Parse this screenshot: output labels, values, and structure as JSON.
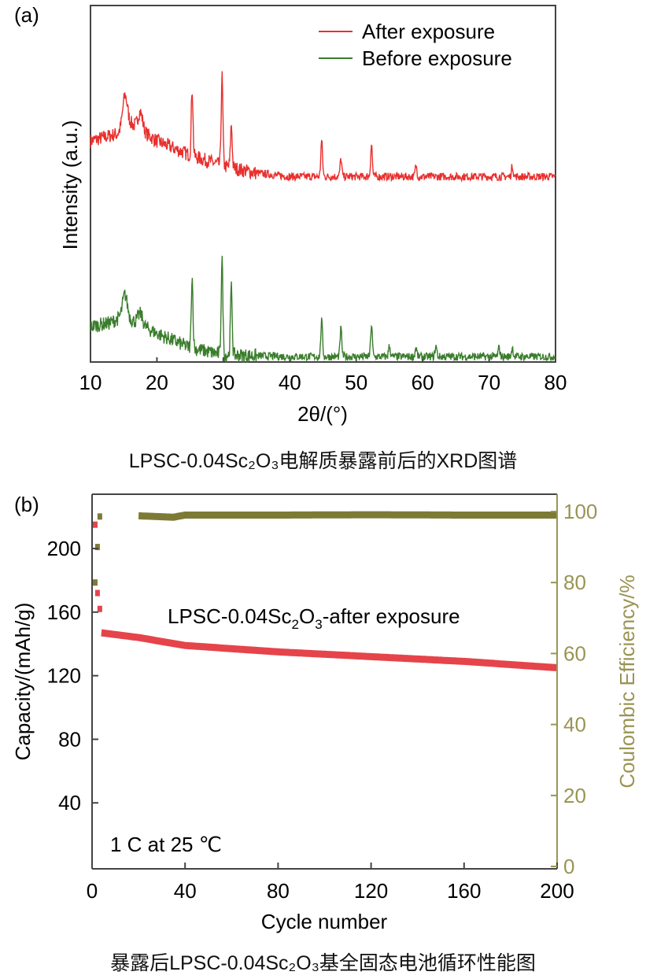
{
  "chart_data": [
    {
      "panel_label": "(a)",
      "type": "line",
      "xlabel": "2θ/(°)",
      "ylabel": "Intensity (a.u.)",
      "xlim": [
        10,
        80
      ],
      "xticks": [
        "10",
        "20",
        "30",
        "40",
        "50",
        "60",
        "70",
        "80"
      ],
      "grid": false,
      "legend_placement": "top-right",
      "caption": "LPSC-0.04Sc₂O₃电解质暴露前后的XRD图谱",
      "series": [
        {
          "name": "After exposure",
          "color": "#e8302e",
          "baseline": [
            [
              10,
              62
            ],
            [
              14,
              64
            ],
            [
              16,
              67
            ],
            [
              20,
              62
            ],
            [
              25,
              58
            ],
            [
              30,
              55
            ],
            [
              35,
              53
            ],
            [
              40,
              52
            ],
            [
              80,
              52
            ]
          ],
          "peaks": [
            [
              15.2,
              9
            ],
            [
              17.5,
              5
            ],
            [
              25.3,
              19
            ],
            [
              29.8,
              25
            ],
            [
              31.2,
              12
            ],
            [
              44.8,
              10
            ],
            [
              47.7,
              5
            ],
            [
              52.3,
              9
            ],
            [
              59,
              3
            ],
            [
              73.5,
              3
            ]
          ]
        },
        {
          "name": "Before exposure",
          "color": "#3a7d2c",
          "baseline": [
            [
              10,
              10
            ],
            [
              13,
              11
            ],
            [
              15,
              13
            ],
            [
              17,
              11
            ],
            [
              20,
              8
            ],
            [
              25,
              4
            ],
            [
              30,
              2
            ],
            [
              40,
              1.5
            ],
            [
              80,
              1.5
            ]
          ],
          "peaks": [
            [
              15.2,
              6
            ],
            [
              17.5,
              3
            ],
            [
              25.3,
              20
            ],
            [
              29.8,
              27
            ],
            [
              31.2,
              19
            ],
            [
              44.8,
              10
            ],
            [
              47.7,
              8
            ],
            [
              52.3,
              9
            ],
            [
              55,
              3
            ],
            [
              59,
              2.5
            ],
            [
              62,
              3
            ],
            [
              71.5,
              2.5
            ],
            [
              73.5,
              2.5
            ]
          ]
        }
      ]
    },
    {
      "panel_label": "(b)",
      "type": "line",
      "xlabel": "Cycle number",
      "ylabel": "Capacity/(mAh/g)",
      "y2label": "Coulombic Efficiency/%",
      "xlim": [
        0,
        200
      ],
      "ylim": [
        0,
        234
      ],
      "y2lim": [
        0,
        105
      ],
      "xticks": [
        "0",
        "40",
        "80",
        "120",
        "160",
        "200"
      ],
      "yticks": [
        "40",
        "80",
        "120",
        "160",
        "200"
      ],
      "y2ticks": [
        "0",
        "20",
        "40",
        "60",
        "80",
        "100"
      ],
      "grid": false,
      "annotation_parts": [
        "LPSC-0.04Sc",
        "2",
        "O",
        "3",
        "-after exposure"
      ],
      "condition": "1 C at 25 ℃",
      "caption": "暴露后LPSC-0.04Sc₂O₃基全固态电池循环性能图",
      "series": [
        {
          "name": "Capacity",
          "axis": "left",
          "color": "#e5444a",
          "points": [
            [
              1,
              215
            ],
            [
              2,
              172
            ],
            [
              3,
              162
            ],
            [
              4,
              147
            ],
            [
              20,
              144
            ],
            [
              40,
              139
            ],
            [
              80,
              135
            ],
            [
              120,
              132
            ],
            [
              160,
              129
            ],
            [
              200,
              125
            ]
          ]
        },
        {
          "name": "Coulombic Efficiency",
          "axis": "right",
          "color": "#7d7a36",
          "points": [
            [
              1,
              80
            ],
            [
              2,
              90
            ],
            [
              3,
              98.6
            ],
            [
              20,
              98.8
            ],
            [
              35,
              98.4
            ],
            [
              40,
              99
            ],
            [
              80,
              99
            ],
            [
              120,
              99.1
            ],
            [
              160,
              99
            ],
            [
              200,
              99
            ]
          ]
        }
      ],
      "y2_color": "#9a9454"
    }
  ]
}
